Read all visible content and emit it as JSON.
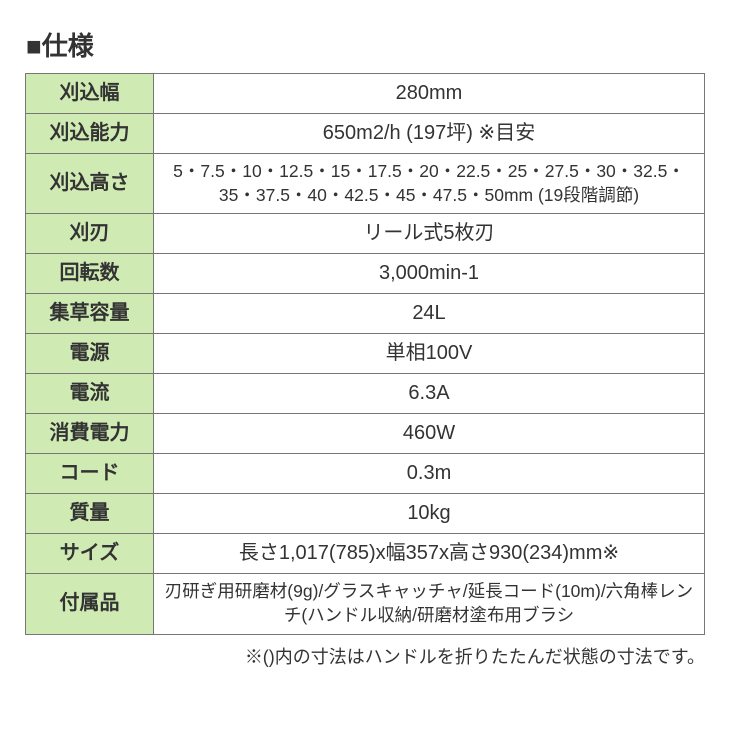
{
  "title": "■仕様",
  "rows": [
    {
      "label": "刈込幅",
      "value": "280mm"
    },
    {
      "label": "刈込能力",
      "value": "650m2/h (197坪) ※目安"
    },
    {
      "label": "刈込高さ",
      "value": "5・7.5・10・12.5・15・17.5・20・22.5・25・27.5・30・32.5・35・37.5・40・42.5・45・47.5・50mm (19段階調節)",
      "cls": "small"
    },
    {
      "label": "刈刃",
      "value": "リール式5枚刃"
    },
    {
      "label": "回転数",
      "value": "3,000min-1"
    },
    {
      "label": "集草容量",
      "value": "24L"
    },
    {
      "label": "電源",
      "value": "単相100V"
    },
    {
      "label": "電流",
      "value": "6.3A"
    },
    {
      "label": "消費電力",
      "value": "460W"
    },
    {
      "label": "コード",
      "value": "0.3m"
    },
    {
      "label": "質量",
      "value": "10kg"
    },
    {
      "label": "サイズ",
      "value": "長さ1,017(785)x幅357x高さ930(234)mm※"
    },
    {
      "label": "付属品",
      "value": "刃研ぎ用研磨材(9g)/グラスキャッチャ/延長コード(10m)/六角棒レンチ(ハンドル収納/研磨材塗布用ブラシ",
      "cls": "small"
    }
  ],
  "footnote": "※()内の寸法はハンドルを折りたたんだ状態の寸法です。",
  "colors": {
    "header_bg": "#cfeab3",
    "border": "#777777",
    "text": "#333333",
    "background": "#ffffff"
  }
}
